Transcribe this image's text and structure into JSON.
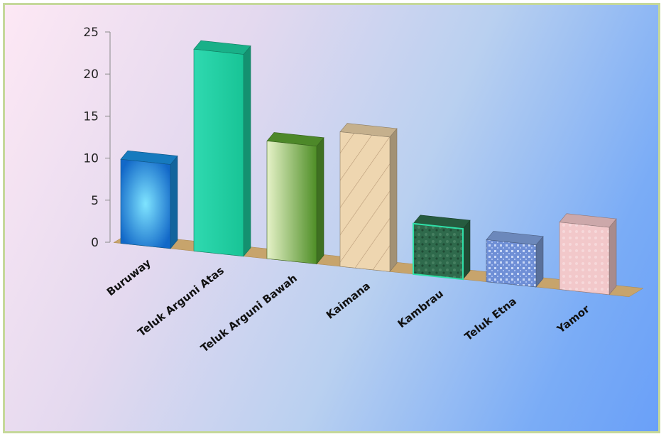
{
  "chart_data": {
    "type": "bar",
    "categories": [
      "Buruway",
      "Teluk Arguni Atas",
      "Teluk Arguni Bawah",
      "Kaimana",
      "Kambrau",
      "Teluk Etna",
      "Yamor"
    ],
    "values": [
      10,
      24,
      14,
      16,
      6,
      5,
      8
    ],
    "ylim": [
      0,
      25
    ],
    "yticks": [
      "0",
      "5",
      "10",
      "15",
      "20",
      "25"
    ],
    "title": "",
    "xlabel": "",
    "ylabel": "",
    "grid": false,
    "legend": "none",
    "colors": [
      "#1a8fe0",
      "#1dcfa0",
      "#5aa030",
      "#e8cfa6",
      "#2d6b4a",
      "#7fa0dc",
      "#f0c6c8"
    ]
  }
}
